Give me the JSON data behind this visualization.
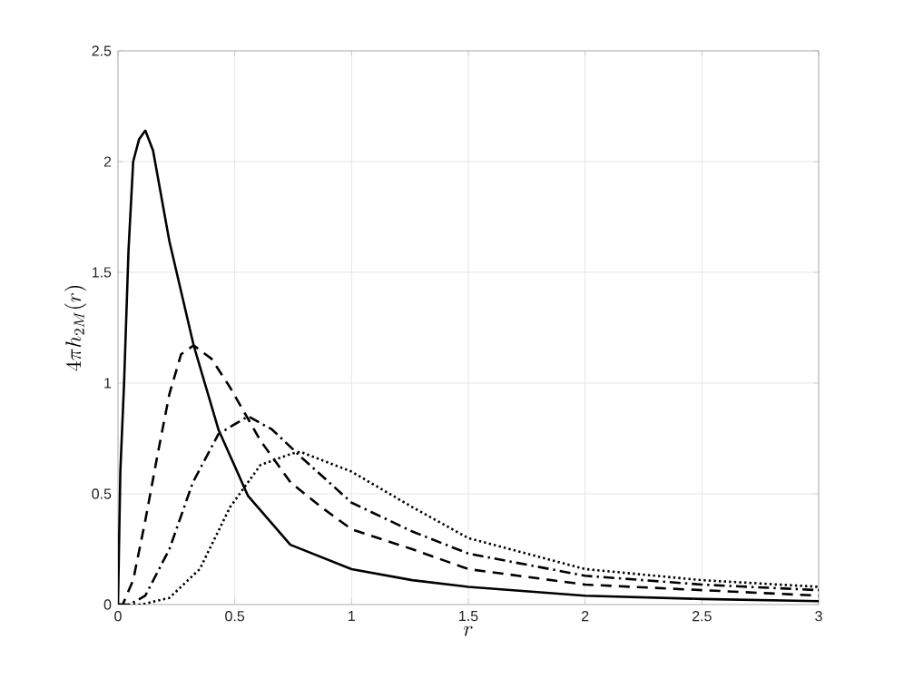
{
  "chart_data": {
    "type": "line",
    "xlabel": "r",
    "ylabel": "4\\pi h_{2M}(r)",
    "xlim": [
      0,
      3
    ],
    "ylim": [
      0,
      2.5
    ],
    "xticks": [
      0,
      0.5,
      1,
      1.5,
      2,
      2.5,
      3
    ],
    "yticks": [
      0,
      0.5,
      1,
      1.5,
      2,
      2.5
    ],
    "grid": true,
    "marker": "none",
    "series": [
      {
        "color": "#000000",
        "line_style": "solid",
        "x": [
          0,
          0.01,
          0.026,
          0.045,
          0.065,
          0.09,
          0.117,
          0.15,
          0.22,
          0.324,
          0.43,
          0.557,
          0.738,
          1.0,
          1.26,
          1.5,
          2,
          2.5,
          3
        ],
        "values": [
          0,
          0.6,
          1.0,
          1.6,
          2.0,
          2.1,
          2.14,
          2.05,
          1.64,
          1.17,
          0.79,
          0.49,
          0.27,
          0.16,
          0.11,
          0.08,
          0.04,
          0.025,
          0.015
        ]
      },
      {
        "color": "#000000",
        "line_style": "dashed",
        "x": [
          0,
          0.02,
          0.065,
          0.117,
          0.17,
          0.22,
          0.27,
          0.324,
          0.4,
          0.48,
          0.61,
          0.74,
          0.87,
          1.0,
          1.26,
          1.5,
          2,
          2.5,
          3
        ],
        "values": [
          0,
          0.0,
          0.11,
          0.38,
          0.68,
          0.95,
          1.13,
          1.17,
          1.11,
          0.98,
          0.74,
          0.55,
          0.44,
          0.34,
          0.25,
          0.16,
          0.09,
          0.065,
          0.04
        ]
      },
      {
        "color": "#000000",
        "line_style": "dashdot",
        "x": [
          0,
          0.05,
          0.117,
          0.22,
          0.32,
          0.43,
          0.557,
          0.66,
          0.79,
          1.0,
          1.26,
          1.5,
          2,
          2.5,
          3
        ],
        "values": [
          0,
          0.0,
          0.04,
          0.25,
          0.55,
          0.77,
          0.85,
          0.79,
          0.66,
          0.46,
          0.33,
          0.23,
          0.13,
          0.09,
          0.065
        ]
      },
      {
        "color": "#000000",
        "line_style": "dotted",
        "x": [
          0,
          0.1,
          0.22,
          0.35,
          0.48,
          0.61,
          0.74,
          0.78,
          1.0,
          1.26,
          1.5,
          2,
          2.5,
          3
        ],
        "values": [
          0,
          0.0,
          0.03,
          0.16,
          0.44,
          0.63,
          0.68,
          0.69,
          0.6,
          0.44,
          0.3,
          0.16,
          0.11,
          0.08
        ]
      }
    ]
  }
}
